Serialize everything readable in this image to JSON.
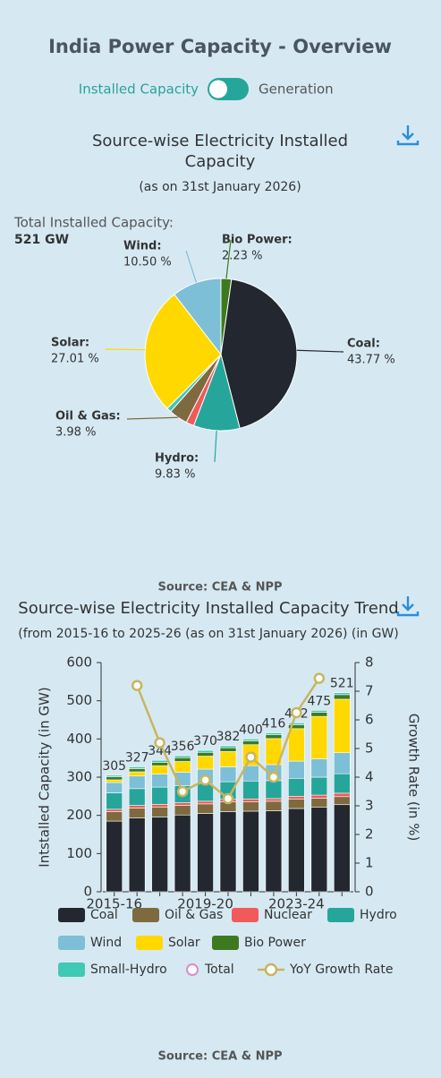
{
  "header": {
    "title": "India Power Capacity - Overview",
    "toggle_left": "Installed Capacity",
    "toggle_right": "Generation"
  },
  "chart_data": [
    {
      "type": "pie",
      "title": "Source-wise Electricity Installed",
      "title_line2": "Capacity",
      "subtitle": "(as on 31st January 2026)",
      "total_label": "Total Installed Capacity:",
      "total_value": "521 GW",
      "categories": [
        "Bio Power:",
        "Coal:",
        "Hydro:",
        null,
        "Oil & Gas:",
        null,
        "Solar:",
        "Wind:"
      ],
      "values": [
        2.23,
        43.77,
        9.83,
        1.7,
        3.98,
        0.98,
        27.01,
        10.5
      ],
      "value_labels": [
        "2.23 %",
        "43.77 %",
        "9.83 %",
        null,
        "3.98 %",
        null,
        "27.01 %",
        "10.50 %"
      ],
      "colors": [
        "#3d7a1f",
        "#23272f",
        "#26a69a",
        "#f05a5a",
        "#7f6a3f",
        "#40c9b4",
        "#ffd800",
        "#7dbfd6"
      ],
      "source": "Source: CEA & NPP"
    },
    {
      "type": "bar",
      "stacked": true,
      "title": "Source-wise Electricity Installed Capacity Trend",
      "subtitle": "(from 2015-16 to 2025-26 (as on 31st January 2026) (in GW)",
      "y_label": "Intstalled Capacity (in GW)",
      "y2_label": "Growth Rate (in %)",
      "categories": [
        "2015-16",
        null,
        null,
        null,
        "2019-20",
        null,
        null,
        null,
        "2023-24",
        null,
        null
      ],
      "ylim": [
        0,
        600
      ],
      "yticks": [
        0,
        100,
        200,
        300,
        400,
        500,
        600
      ],
      "y2lim": [
        0,
        8
      ],
      "y2ticks": [
        0,
        1,
        2,
        3,
        4,
        5,
        6,
        7,
        8
      ],
      "series": [
        {
          "name": "Coal",
          "color": "#23272f",
          "type": "bar",
          "values": [
            185,
            193,
            196,
            201,
            205,
            210,
            211,
            212,
            218,
            221,
            228
          ]
        },
        {
          "name": "Oil & Gas",
          "color": "#7f6a3f",
          "type": "bar",
          "values": [
            25,
            26,
            26,
            25,
            25,
            25,
            25,
            25,
            25,
            24,
            21
          ]
        },
        {
          "name": "Nuclear",
          "color": "#f05a5a",
          "type": "bar",
          "values": [
            6,
            7,
            7,
            7,
            7,
            7,
            7,
            7,
            7,
            8,
            9
          ]
        },
        {
          "name": "Hydro",
          "color": "#26a69a",
          "type": "bar",
          "values": [
            43,
            44,
            45,
            45,
            46,
            46,
            47,
            47,
            47,
            47,
            51
          ]
        },
        {
          "name": "Wind",
          "color": "#7dbfd6",
          "type": "bar",
          "values": [
            27,
            33,
            34,
            35,
            38,
            39,
            40,
            42,
            45,
            48,
            55
          ]
        },
        {
          "name": "Solar",
          "color": "#ffd800",
          "type": "bar",
          "values": [
            7,
            11,
            22,
            28,
            34,
            40,
            55,
            68,
            85,
            111,
            140
          ]
        },
        {
          "name": "Bio Power",
          "color": "#3d7a1f",
          "type": "bar",
          "values": [
            8,
            8,
            9,
            10,
            10,
            10,
            10,
            10,
            10,
            11,
            12
          ]
        },
        {
          "name": "Small-Hydro",
          "color": "#40c9b4",
          "type": "bar",
          "values": [
            4,
            5,
            5,
            5,
            5,
            5,
            5,
            5,
            5,
            5,
            5
          ]
        },
        {
          "name": "Total",
          "color": "#d98cc9",
          "type": "label",
          "values": [
            305,
            327,
            344,
            356,
            370,
            382,
            400,
            416,
            442,
            475,
            521
          ]
        },
        {
          "name": "YoY Growth Rate",
          "color": "#c9b560",
          "type": "line",
          "axis": "y2",
          "values": [
            null,
            7.2,
            5.2,
            3.5,
            3.9,
            3.25,
            4.7,
            4.0,
            6.25,
            7.45,
            null
          ]
        }
      ],
      "source": "Source: CEA & NPP"
    }
  ]
}
